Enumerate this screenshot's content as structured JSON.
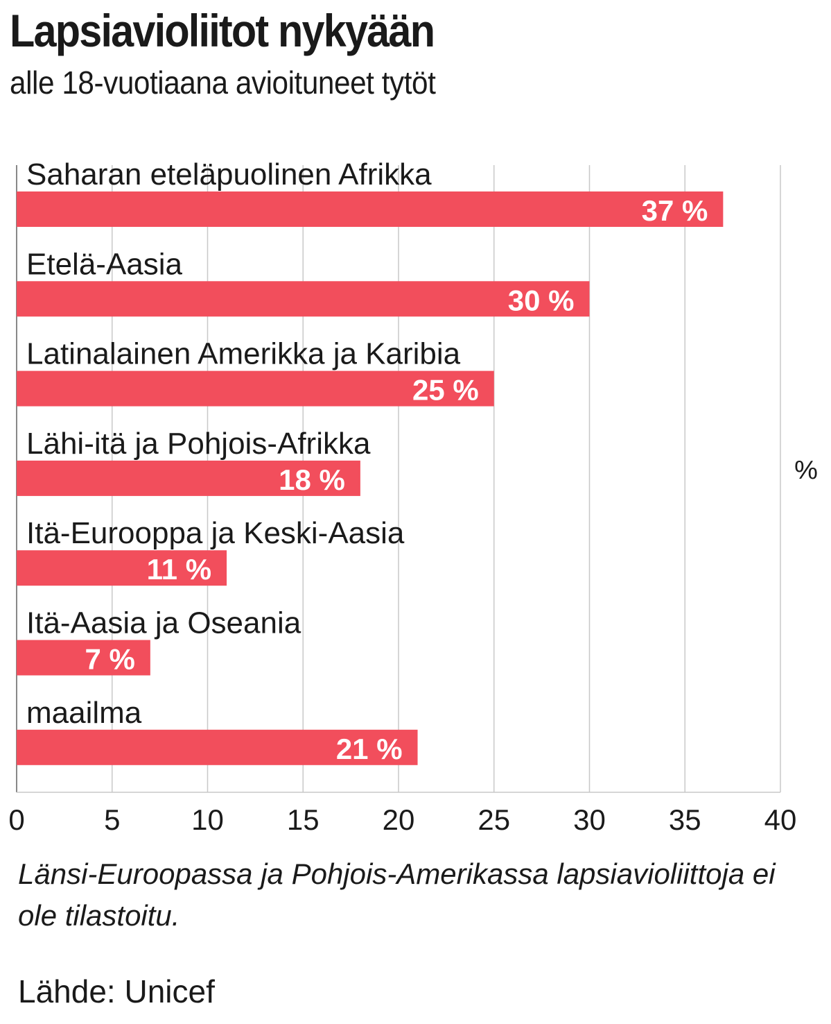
{
  "title": "Lapsiavioliitot nykyään",
  "subtitle": "alle 18-vuotiaana avioituneet tytöt",
  "note": "Länsi-Euroopassa ja Pohjois-Amerikassa lapsiavioliittoja ei ole tilastoitu.",
  "source": "Lähde: Unicef",
  "colors": {
    "bar": "#f24e5c",
    "grid": "#c8c8c8",
    "axis": "#888888"
  },
  "chart_data": {
    "type": "bar",
    "orientation": "horizontal",
    "categories": [
      "Saharan eteläpuolinen Afrikka",
      "Etelä-Aasia",
      "Latinalainen Amerikka ja Karibia",
      "Lähi-itä ja Pohjois-Afrikka",
      "Itä-Eurooppa ja Keski-Aasia",
      "Itä-Aasia ja Oseania",
      "maailma"
    ],
    "values": [
      37,
      30,
      25,
      18,
      11,
      7,
      21
    ],
    "value_labels": [
      "37 %",
      "30 %",
      "25 %",
      "18 %",
      "11 %",
      "7 %",
      "21 %"
    ],
    "xlim": [
      0,
      40
    ],
    "xticks": [
      0,
      5,
      10,
      15,
      20,
      25,
      30,
      35,
      40
    ],
    "unit_label": "%",
    "grid": true
  }
}
